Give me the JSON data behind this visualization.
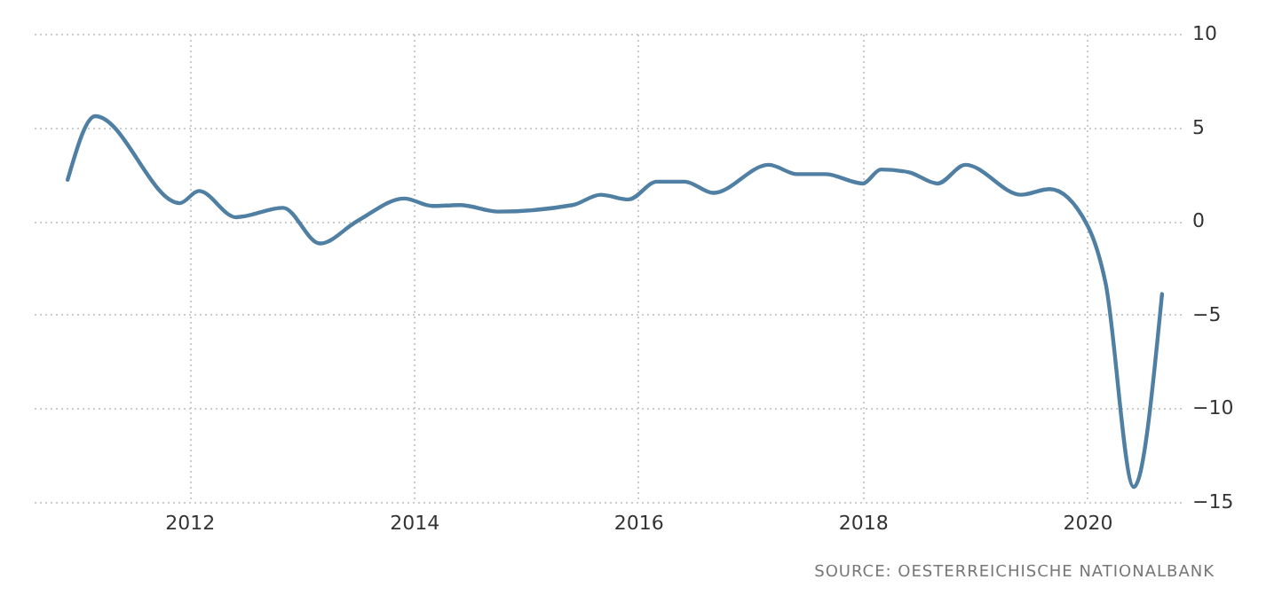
{
  "chart_data": {
    "type": "line",
    "x": [
      "2010-12",
      "2011-03",
      "2011-12",
      "2012-02",
      "2012-06",
      "2012-11",
      "2013-03",
      "2013-07",
      "2013-12",
      "2014-03",
      "2014-06",
      "2014-10",
      "2015-06",
      "2015-09",
      "2015-12",
      "2016-03",
      "2016-06",
      "2016-09",
      "2017-03",
      "2017-06",
      "2017-09",
      "2018-01",
      "2018-03",
      "2018-06",
      "2018-09",
      "2018-12",
      "2019-06",
      "2019-09",
      "2020-01",
      "2020-03",
      "2020-06",
      "2020-09"
    ],
    "series": [
      {
        "color": "#4f7fa3",
        "values": [
          2.2,
          5.6,
          0.95,
          1.6,
          0.2,
          0.7,
          -1.2,
          0,
          1.2,
          0.8,
          0.85,
          0.5,
          0.85,
          1.4,
          1.15,
          2.1,
          2.1,
          1.5,
          3.0,
          2.5,
          2.5,
          2.0,
          2.75,
          2.6,
          2.0,
          3.0,
          1.4,
          1.7,
          -0.2,
          -3.3,
          -14.2,
          -3.9
        ]
      }
    ],
    "xlim": [
      "2010-08",
      "2020-11"
    ],
    "xticks": [
      "2012",
      "2014",
      "2016",
      "2018",
      "2020"
    ],
    "ylim": [
      -15,
      10
    ],
    "yticks": [
      -15,
      -10,
      -5,
      0,
      5,
      10
    ],
    "grid": true,
    "line_style": "solid",
    "marker": "none",
    "annotations": [
      "SOURCE: OESTERREICHISCHE NATIONALBANK"
    ]
  }
}
